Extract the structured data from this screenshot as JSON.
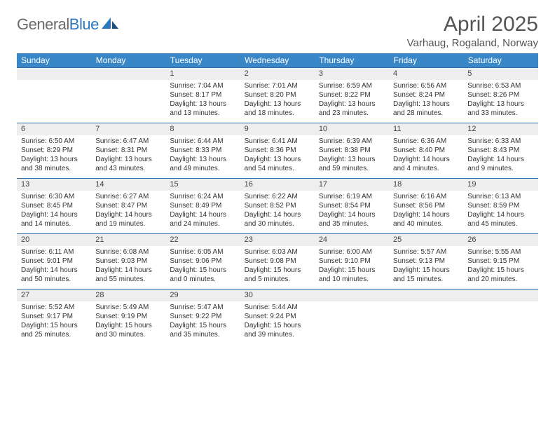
{
  "logo": {
    "word1": "General",
    "word2": "Blue"
  },
  "title": "April 2025",
  "location": "Varhaug, Rogaland, Norway",
  "colors": {
    "header_bg": "#3a87c8",
    "header_text": "#ffffff",
    "row_divider": "#2f6ea8",
    "daynum_bg": "#eeeeee",
    "body_text": "#333333",
    "title_text": "#555555",
    "logo_gray": "#6a6a6a",
    "logo_blue": "#2b78bd",
    "page_bg": "#ffffff"
  },
  "weekdays": [
    "Sunday",
    "Monday",
    "Tuesday",
    "Wednesday",
    "Thursday",
    "Friday",
    "Saturday"
  ],
  "weeks": [
    [
      null,
      null,
      {
        "n": "1",
        "sr": "7:04 AM",
        "ss": "8:17 PM",
        "dl": "13 hours and 13 minutes."
      },
      {
        "n": "2",
        "sr": "7:01 AM",
        "ss": "8:20 PM",
        "dl": "13 hours and 18 minutes."
      },
      {
        "n": "3",
        "sr": "6:59 AM",
        "ss": "8:22 PM",
        "dl": "13 hours and 23 minutes."
      },
      {
        "n": "4",
        "sr": "6:56 AM",
        "ss": "8:24 PM",
        "dl": "13 hours and 28 minutes."
      },
      {
        "n": "5",
        "sr": "6:53 AM",
        "ss": "8:26 PM",
        "dl": "13 hours and 33 minutes."
      }
    ],
    [
      {
        "n": "6",
        "sr": "6:50 AM",
        "ss": "8:29 PM",
        "dl": "13 hours and 38 minutes."
      },
      {
        "n": "7",
        "sr": "6:47 AM",
        "ss": "8:31 PM",
        "dl": "13 hours and 43 minutes."
      },
      {
        "n": "8",
        "sr": "6:44 AM",
        "ss": "8:33 PM",
        "dl": "13 hours and 49 minutes."
      },
      {
        "n": "9",
        "sr": "6:41 AM",
        "ss": "8:36 PM",
        "dl": "13 hours and 54 minutes."
      },
      {
        "n": "10",
        "sr": "6:39 AM",
        "ss": "8:38 PM",
        "dl": "13 hours and 59 minutes."
      },
      {
        "n": "11",
        "sr": "6:36 AM",
        "ss": "8:40 PM",
        "dl": "14 hours and 4 minutes."
      },
      {
        "n": "12",
        "sr": "6:33 AM",
        "ss": "8:43 PM",
        "dl": "14 hours and 9 minutes."
      }
    ],
    [
      {
        "n": "13",
        "sr": "6:30 AM",
        "ss": "8:45 PM",
        "dl": "14 hours and 14 minutes."
      },
      {
        "n": "14",
        "sr": "6:27 AM",
        "ss": "8:47 PM",
        "dl": "14 hours and 19 minutes."
      },
      {
        "n": "15",
        "sr": "6:24 AM",
        "ss": "8:49 PM",
        "dl": "14 hours and 24 minutes."
      },
      {
        "n": "16",
        "sr": "6:22 AM",
        "ss": "8:52 PM",
        "dl": "14 hours and 30 minutes."
      },
      {
        "n": "17",
        "sr": "6:19 AM",
        "ss": "8:54 PM",
        "dl": "14 hours and 35 minutes."
      },
      {
        "n": "18",
        "sr": "6:16 AM",
        "ss": "8:56 PM",
        "dl": "14 hours and 40 minutes."
      },
      {
        "n": "19",
        "sr": "6:13 AM",
        "ss": "8:59 PM",
        "dl": "14 hours and 45 minutes."
      }
    ],
    [
      {
        "n": "20",
        "sr": "6:11 AM",
        "ss": "9:01 PM",
        "dl": "14 hours and 50 minutes."
      },
      {
        "n": "21",
        "sr": "6:08 AM",
        "ss": "9:03 PM",
        "dl": "14 hours and 55 minutes."
      },
      {
        "n": "22",
        "sr": "6:05 AM",
        "ss": "9:06 PM",
        "dl": "15 hours and 0 minutes."
      },
      {
        "n": "23",
        "sr": "6:03 AM",
        "ss": "9:08 PM",
        "dl": "15 hours and 5 minutes."
      },
      {
        "n": "24",
        "sr": "6:00 AM",
        "ss": "9:10 PM",
        "dl": "15 hours and 10 minutes."
      },
      {
        "n": "25",
        "sr": "5:57 AM",
        "ss": "9:13 PM",
        "dl": "15 hours and 15 minutes."
      },
      {
        "n": "26",
        "sr": "5:55 AM",
        "ss": "9:15 PM",
        "dl": "15 hours and 20 minutes."
      }
    ],
    [
      {
        "n": "27",
        "sr": "5:52 AM",
        "ss": "9:17 PM",
        "dl": "15 hours and 25 minutes."
      },
      {
        "n": "28",
        "sr": "5:49 AM",
        "ss": "9:19 PM",
        "dl": "15 hours and 30 minutes."
      },
      {
        "n": "29",
        "sr": "5:47 AM",
        "ss": "9:22 PM",
        "dl": "15 hours and 35 minutes."
      },
      {
        "n": "30",
        "sr": "5:44 AM",
        "ss": "9:24 PM",
        "dl": "15 hours and 39 minutes."
      },
      null,
      null,
      null
    ]
  ],
  "labels": {
    "sunrise": "Sunrise:",
    "sunset": "Sunset:",
    "daylight": "Daylight:"
  }
}
